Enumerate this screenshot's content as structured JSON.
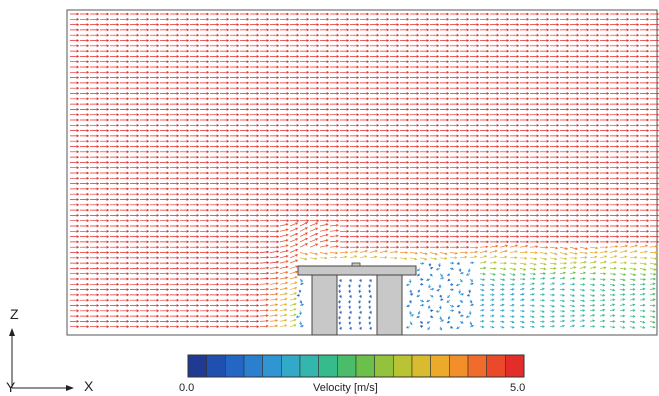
{
  "axes": {
    "z_label": "Z",
    "y_label": "Y",
    "x_label": "X"
  },
  "colorbar": {
    "title": "Velocity [m/s]",
    "min_label": "0.0",
    "max_label": "5.0",
    "min": 0.0,
    "max": 5.0,
    "steps": 18,
    "colors": [
      "#1f3a93",
      "#1f50b0",
      "#2366c4",
      "#2a80cf",
      "#2f96d2",
      "#33a9c8",
      "#34b6ae",
      "#38bb8c",
      "#4bbd6a",
      "#6bbf4b",
      "#93c23c",
      "#b8c434",
      "#d8bb2e",
      "#ecaa2a",
      "#f28f2a",
      "#f06c2a",
      "#ea4a2a",
      "#e22d2a"
    ]
  },
  "scene": {
    "background_color": "#ffffff",
    "structure_color": "#c8c8c8",
    "structure_outline": "#444444"
  }
}
